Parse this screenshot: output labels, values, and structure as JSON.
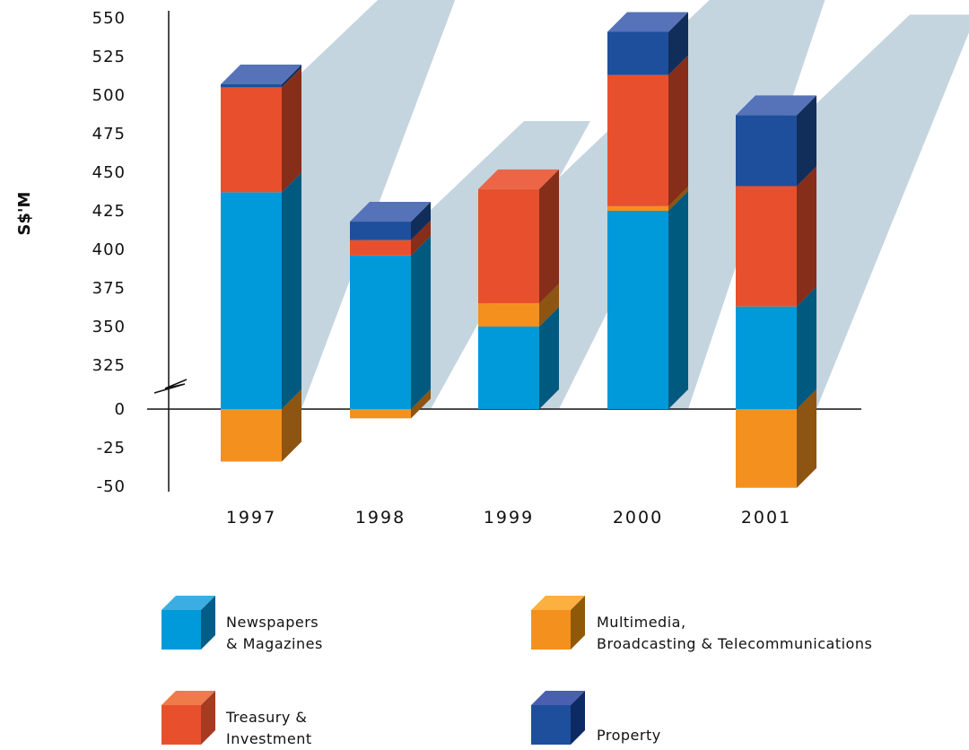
{
  "chart_data": {
    "type": "bar",
    "stacked": true,
    "three_d": true,
    "categories": [
      "1997",
      "1998",
      "1999",
      "2000",
      "2001"
    ],
    "series": [
      {
        "name": "Newspapers & Magazines",
        "color": "#0099d9",
        "values": [
          437,
          396,
          350,
          425,
          363
        ]
      },
      {
        "name": "Multimedia, Broadcasting & Telecommunications",
        "color": "#f4901e",
        "values": [
          -34,
          -6,
          15,
          3,
          -51
        ]
      },
      {
        "name": "Treasury & Investment",
        "color": "#e8502d",
        "values": [
          68,
          10,
          74,
          85,
          78
        ]
      },
      {
        "name": "Property",
        "color": "#1e4f9c",
        "values": [
          2,
          12,
          0,
          28,
          46
        ]
      }
    ],
    "ylabel": "S$'M",
    "yticks": [
      "550",
      "525",
      "500",
      "475",
      "450",
      "425",
      "400",
      "375",
      "350",
      "325",
      "0",
      "-25",
      "-50"
    ],
    "axis_break": "between 325 and 0",
    "legend_position": "bottom"
  },
  "legend": {
    "newspapers_line1": "Newspapers",
    "newspapers_line2": "& Magazines",
    "multimedia_line1": "Multimedia,",
    "multimedia_line2": "Broadcasting & Telecommunications",
    "treasury_line1": "Treasury &",
    "treasury_line2": "Investment",
    "property_line1": "Property"
  }
}
